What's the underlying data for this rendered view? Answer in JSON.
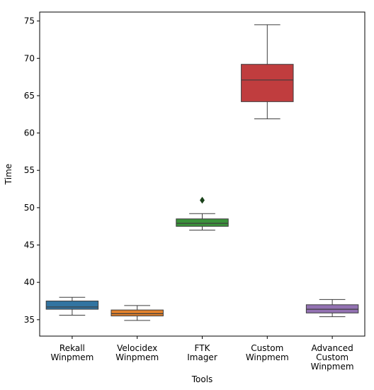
{
  "chart_data": {
    "type": "box",
    "xlabel": "Tools",
    "ylabel": "Time",
    "ylim": [
      32.8,
      76.2
    ],
    "yticks": [
      35,
      40,
      45,
      50,
      55,
      60,
      65,
      70,
      75
    ],
    "categories": [
      [
        "Rekall",
        "Winpmem"
      ],
      [
        "Velocidex",
        "Winpmem"
      ],
      [
        "FTK",
        "Imager"
      ],
      [
        "Custom",
        "Winpmem"
      ],
      [
        "Advanced",
        "Custom",
        "Winpmem"
      ]
    ],
    "boxes": [
      {
        "whisker_low": 35.6,
        "q1": 36.4,
        "median": 36.7,
        "q3": 37.5,
        "whisker_high": 38.0,
        "outliers": [],
        "color": "#3274a1"
      },
      {
        "whisker_low": 34.9,
        "q1": 35.5,
        "median": 35.8,
        "q3": 36.3,
        "whisker_high": 36.9,
        "outliers": [],
        "color": "#e1812c"
      },
      {
        "whisker_low": 47.0,
        "q1": 47.5,
        "median": 47.9,
        "q3": 48.5,
        "whisker_high": 49.2,
        "outliers": [
          51.0
        ],
        "color": "#3a923a"
      },
      {
        "whisker_low": 61.9,
        "q1": 64.2,
        "median": 67.1,
        "q3": 69.2,
        "whisker_high": 74.5,
        "outliers": [],
        "color": "#c03d3e"
      },
      {
        "whisker_low": 35.4,
        "q1": 35.9,
        "median": 36.4,
        "q3": 37.0,
        "whisker_high": 37.7,
        "outliers": [],
        "color": "#9372b2"
      }
    ]
  }
}
